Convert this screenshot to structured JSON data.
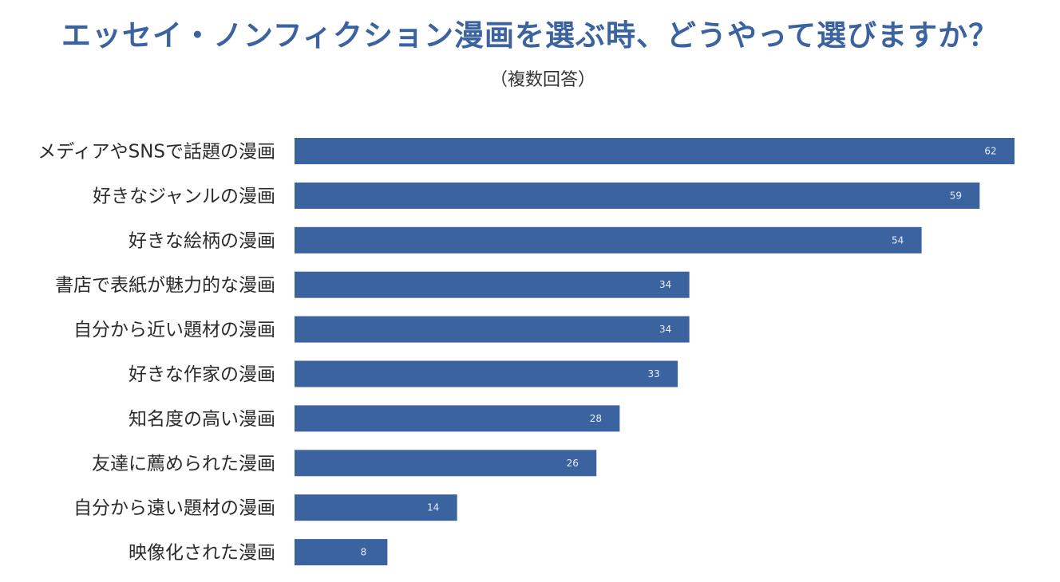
{
  "chart_data": {
    "type": "bar",
    "orientation": "horizontal",
    "title": "エッセイ・ノンフィクション漫画を選ぶ時、どうやって選びますか？",
    "subtitle": "（複数回答）",
    "categories": [
      "メディアやSNSで話題の漫画",
      "好きなジャンルの漫画",
      "好きな絵柄の漫画",
      "書店で表紙が魅力的な漫画",
      "自分から近い題材の漫画",
      "好きな作家の漫画",
      "知名度の高い漫画",
      "友達に薦められた漫画",
      "自分から遠い題材の漫画",
      "映像化された漫画"
    ],
    "values": [
      62,
      59,
      54,
      34,
      34,
      33,
      28,
      26,
      14,
      8
    ],
    "xlim": [
      0,
      62
    ],
    "grid": false,
    "legend": "none",
    "bar_color": "#3b63a0",
    "title_color": "#3b63a0",
    "value_label_color": "#e8eef8"
  }
}
